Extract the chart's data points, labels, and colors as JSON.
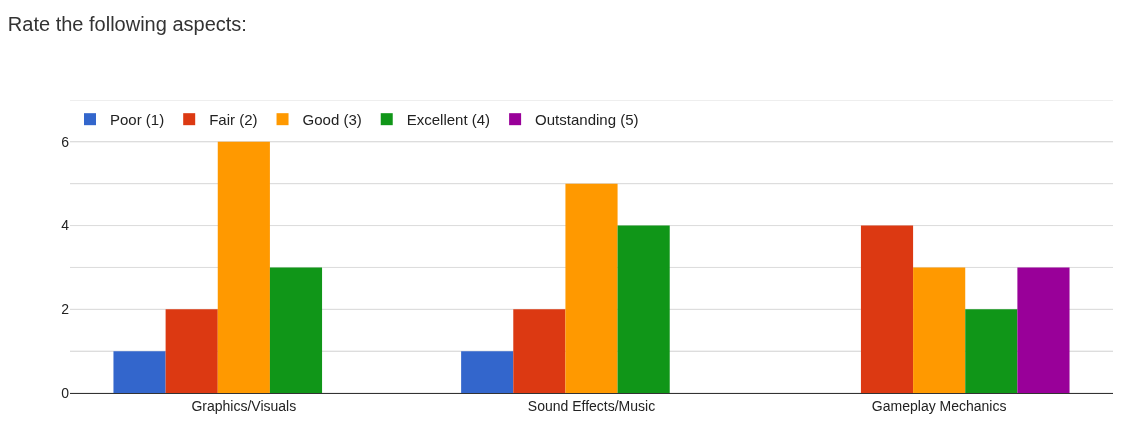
{
  "chart_data": {
    "type": "bar",
    "title": "Rate the following aspects:",
    "categories": [
      "Graphics/Visuals",
      "Sound Effects/Music",
      "Gameplay Mechanics"
    ],
    "series": [
      {
        "name": "Poor (1)",
        "color": "#3366cc",
        "values": [
          1,
          1,
          0
        ]
      },
      {
        "name": "Fair (2)",
        "color": "#dc3912",
        "values": [
          2,
          2,
          4
        ]
      },
      {
        "name": "Good (3)",
        "color": "#ff9900",
        "values": [
          6,
          5,
          3
        ]
      },
      {
        "name": "Excellent (4)",
        "color": "#109618",
        "values": [
          3,
          4,
          2
        ]
      },
      {
        "name": "Outstanding (5)",
        "color": "#990099",
        "values": [
          0,
          0,
          3
        ]
      }
    ],
    "ylim": [
      0,
      7
    ],
    "yticks": [
      0,
      {
        "value": 1,
        "label": null
      },
      2,
      {
        "value": 3,
        "label": null
      },
      4,
      {
        "value": 5,
        "label": null
      },
      6,
      {
        "value": 7,
        "label": null
      }
    ],
    "grid": "y",
    "legend": "top left"
  }
}
